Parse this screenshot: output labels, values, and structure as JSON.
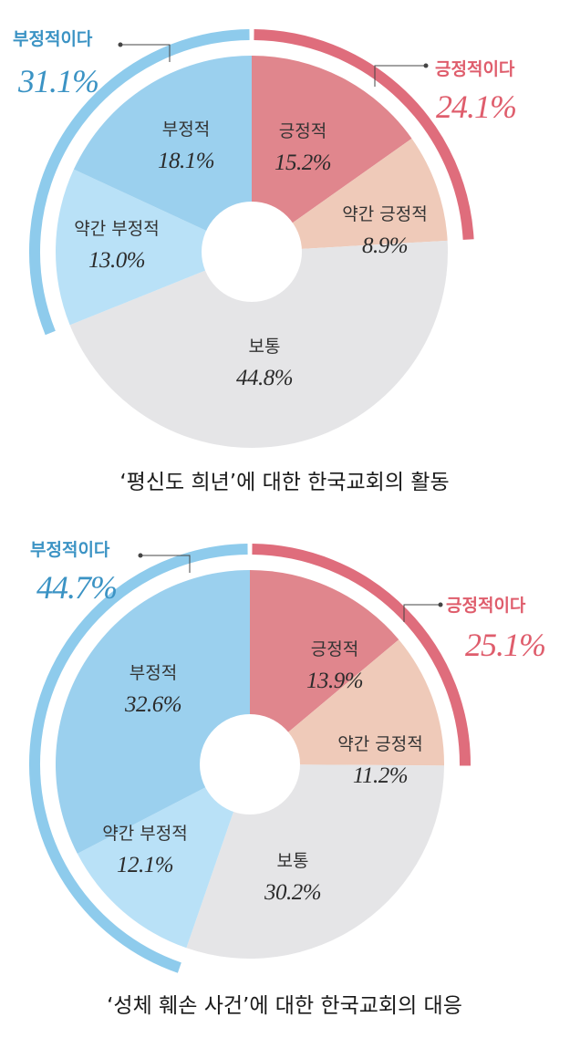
{
  "colors": {
    "negative_outer": "#8ecbec",
    "positive_outer": "#df6d7c",
    "negative_title": "#3b93c4",
    "positive_title": "#df5d6c",
    "hole": "#ffffff",
    "leader": "#444444"
  },
  "chart_data": [
    {
      "type": "pie",
      "variant": "donut",
      "caption": "‘평신도 희년’에 대한 한국교회의 활동",
      "slices": [
        {
          "label": "긍정적",
          "value": 15.2,
          "value_text": "15.2%",
          "color": "#e0868d"
        },
        {
          "label": "약간 긍정적",
          "value": 8.9,
          "value_text": "8.9%",
          "color": "#efcab9"
        },
        {
          "label": "보통",
          "value": 44.8,
          "value_text": "44.8%",
          "color": "#e5e5e7"
        },
        {
          "label": "약간 부정적",
          "value": 13.0,
          "value_text": "13.0%",
          "color": "#b9e1f7"
        },
        {
          "label": "부정적",
          "value": 18.1,
          "value_text": "18.1%",
          "color": "#9bd0ee"
        }
      ],
      "groups": {
        "negative": {
          "title": "부정적이다",
          "value": 31.1,
          "value_text": "31.1%"
        },
        "positive": {
          "title": "긍정적이다",
          "value": 24.1,
          "value_text": "24.1%"
        }
      }
    },
    {
      "type": "pie",
      "variant": "donut",
      "caption": "‘성체 훼손 사건’에 대한 한국교회의 대응",
      "slices": [
        {
          "label": "긍정적",
          "value": 13.9,
          "value_text": "13.9%",
          "color": "#e0868d"
        },
        {
          "label": "약간 긍정적",
          "value": 11.2,
          "value_text": "11.2%",
          "color": "#efcab9"
        },
        {
          "label": "보통",
          "value": 30.2,
          "value_text": "30.2%",
          "color": "#e5e5e7"
        },
        {
          "label": "약간 부정적",
          "value": 12.1,
          "value_text": "12.1%",
          "color": "#b9e1f7"
        },
        {
          "label": "부정적",
          "value": 32.6,
          "value_text": "32.6%",
          "color": "#9bd0ee"
        }
      ],
      "groups": {
        "negative": {
          "title": "부정적이다",
          "value": 44.7,
          "value_text": "44.7%"
        },
        "positive": {
          "title": "긍정적이다",
          "value": 25.1,
          "value_text": "25.1%"
        }
      }
    }
  ]
}
